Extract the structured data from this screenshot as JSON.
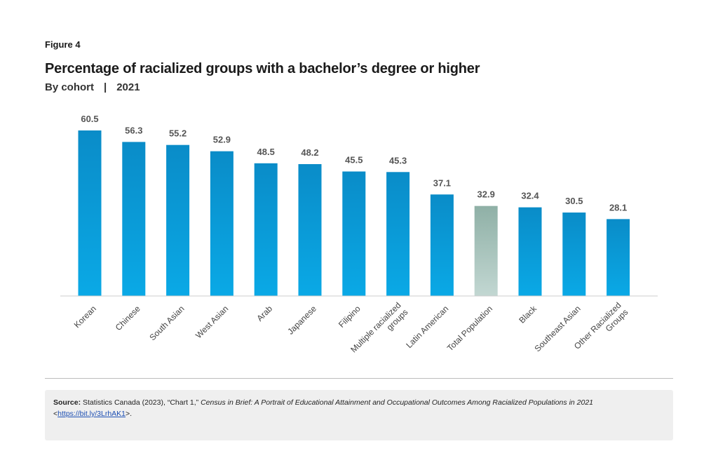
{
  "figure_label": "Figure 4",
  "title": "Percentage of racialized groups with a bachelor’s degree or higher",
  "subtitle": {
    "left": "By cohort",
    "separator": "|",
    "right": "2021"
  },
  "colors": {
    "bar_top": "#0a8cc8",
    "bar_bottom": "#0aa9e6",
    "highlight_top": "#8fb0a6",
    "highlight_bottom": "#c2d7d2",
    "axis": "#cccccc"
  },
  "chart_data": {
    "type": "bar",
    "title": "Percentage of racialized groups with a bachelor’s degree or higher",
    "xlabel": "",
    "ylabel": "",
    "ylim": [
      0,
      60.5
    ],
    "grid": false,
    "highlight_category": "Total Population",
    "categories": [
      [
        "Korean"
      ],
      [
        "Chinese"
      ],
      [
        "South Asian"
      ],
      [
        "West Asian"
      ],
      [
        "Arab"
      ],
      [
        "Japanese"
      ],
      [
        "Filipino"
      ],
      [
        "Multiple racialized",
        "groups"
      ],
      [
        "Latin American"
      ],
      [
        "Total Population"
      ],
      [
        "Black"
      ],
      [
        "Southeast Asian"
      ],
      [
        "Other Racialized",
        "Groups"
      ]
    ],
    "values": [
      60.5,
      56.3,
      55.2,
      52.9,
      48.5,
      48.2,
      45.5,
      45.3,
      37.1,
      32.9,
      32.4,
      30.5,
      28.1
    ],
    "value_labels": [
      "60.5",
      "56.3",
      "55.2",
      "52.9",
      "48.5",
      "48.2",
      "45.5",
      "45.3",
      "37.1",
      "32.9",
      "32.4",
      "30.5",
      "28.1"
    ]
  },
  "source": {
    "label": "Source:",
    "text_pre": " Statistics Canada (2023), “Chart 1,” ",
    "text_italic": "Census in Brief: A Portrait of Educational Attainment and Occupational Outcomes Among Racialized Populations in 2021",
    "link_open": "<",
    "link_text": "https://bit.ly/3LrhAK1",
    "link_close": ">."
  }
}
